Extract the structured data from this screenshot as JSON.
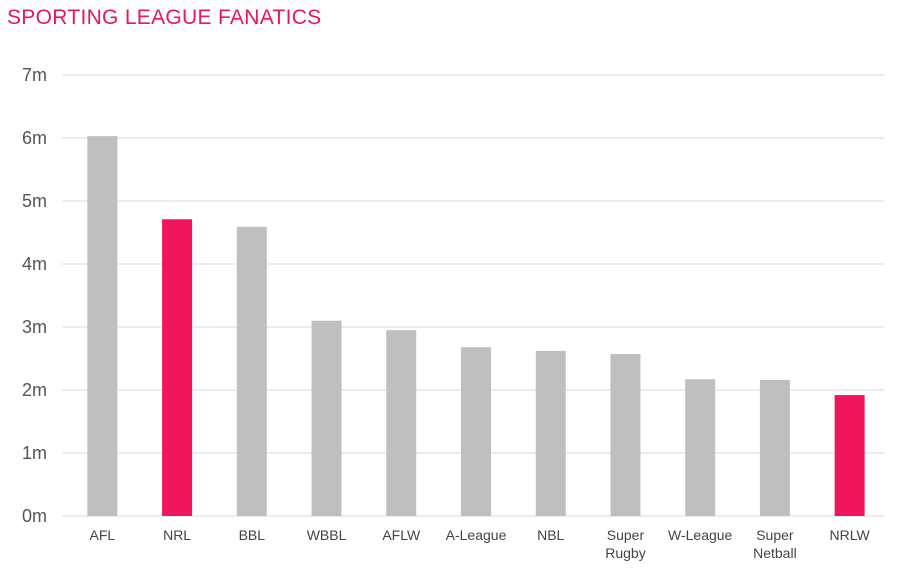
{
  "chart_data": {
    "type": "bar",
    "title": "SPORTING LEAGUE FANATICS",
    "xlabel": "",
    "ylabel": "",
    "ylim": [
      0,
      7
    ],
    "yticks": [
      0,
      1,
      2,
      3,
      4,
      5,
      6,
      7
    ],
    "ytick_labels": [
      "0m",
      "1m",
      "2m",
      "3m",
      "4m",
      "5m",
      "6m",
      "7m"
    ],
    "grid": true,
    "categories": [
      "AFL",
      "NRL",
      "BBL",
      "WBBL",
      "AFLW",
      "A-League",
      "NBL",
      "Super Rugby",
      "W-League",
      "Super Netball",
      "NRLW"
    ],
    "category_lines": [
      [
        "AFL"
      ],
      [
        "NRL"
      ],
      [
        "BBL"
      ],
      [
        "WBBL"
      ],
      [
        "AFLW"
      ],
      [
        "A-League"
      ],
      [
        "NBL"
      ],
      [
        "Super",
        "Rugby"
      ],
      [
        "W-League"
      ],
      [
        "Super",
        "Netball"
      ],
      [
        "NRLW"
      ]
    ],
    "values": [
      6.03,
      4.71,
      4.59,
      3.1,
      2.95,
      2.68,
      2.62,
      2.57,
      2.17,
      2.16,
      1.92
    ],
    "highlighted": [
      "NRL",
      "NRLW"
    ],
    "colors": {
      "default": "#bfbfbf",
      "highlight": "#f0165c",
      "title": "#e8175d",
      "grid": "#d9d9d9"
    }
  }
}
